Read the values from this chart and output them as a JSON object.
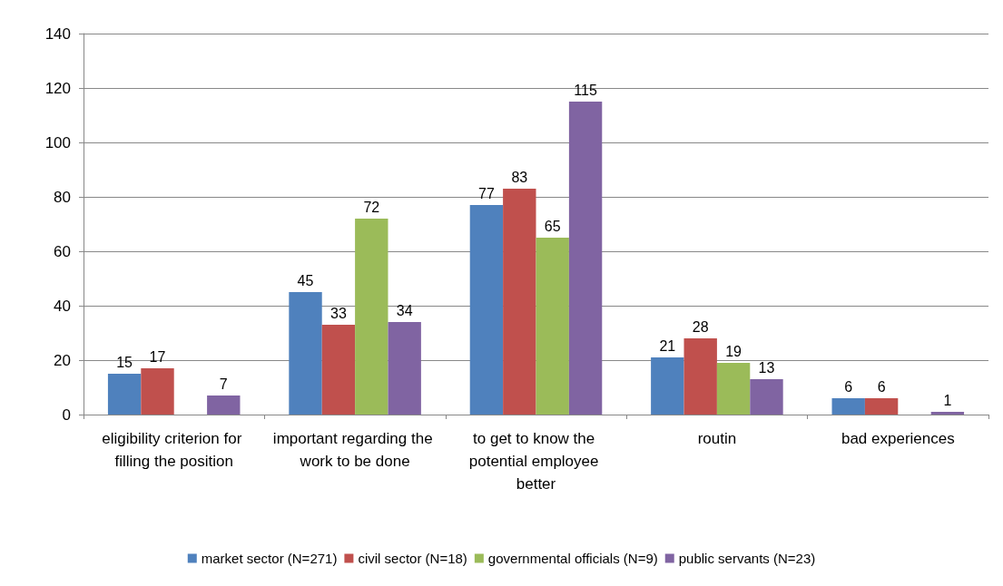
{
  "chart_data": {
    "type": "bar",
    "categories": [
      "eligibility criterion for filling the position",
      "important regarding the work to be done",
      "to get to know the potential employee better",
      "routin",
      "bad experiences"
    ],
    "series": [
      {
        "name": "market sector (N=271)",
        "color": "#4f81bd",
        "values": [
          15,
          45,
          77,
          21,
          6
        ]
      },
      {
        "name": "civil sector (N=18)",
        "color": "#c0504d",
        "values": [
          17,
          33,
          83,
          28,
          6
        ]
      },
      {
        "name": "governmental officials (N=9)",
        "color": "#9bbb59",
        "values": [
          null,
          72,
          65,
          19,
          null
        ]
      },
      {
        "name": "public servants (N=23)",
        "color": "#8064a2",
        "values": [
          7,
          34,
          115,
          13,
          1
        ]
      }
    ],
    "ylim": [
      0,
      140
    ],
    "yticks": [
      0,
      20,
      40,
      60,
      80,
      100,
      120,
      140
    ],
    "grid": "y",
    "legend": "bottom",
    "data_labels": true
  }
}
